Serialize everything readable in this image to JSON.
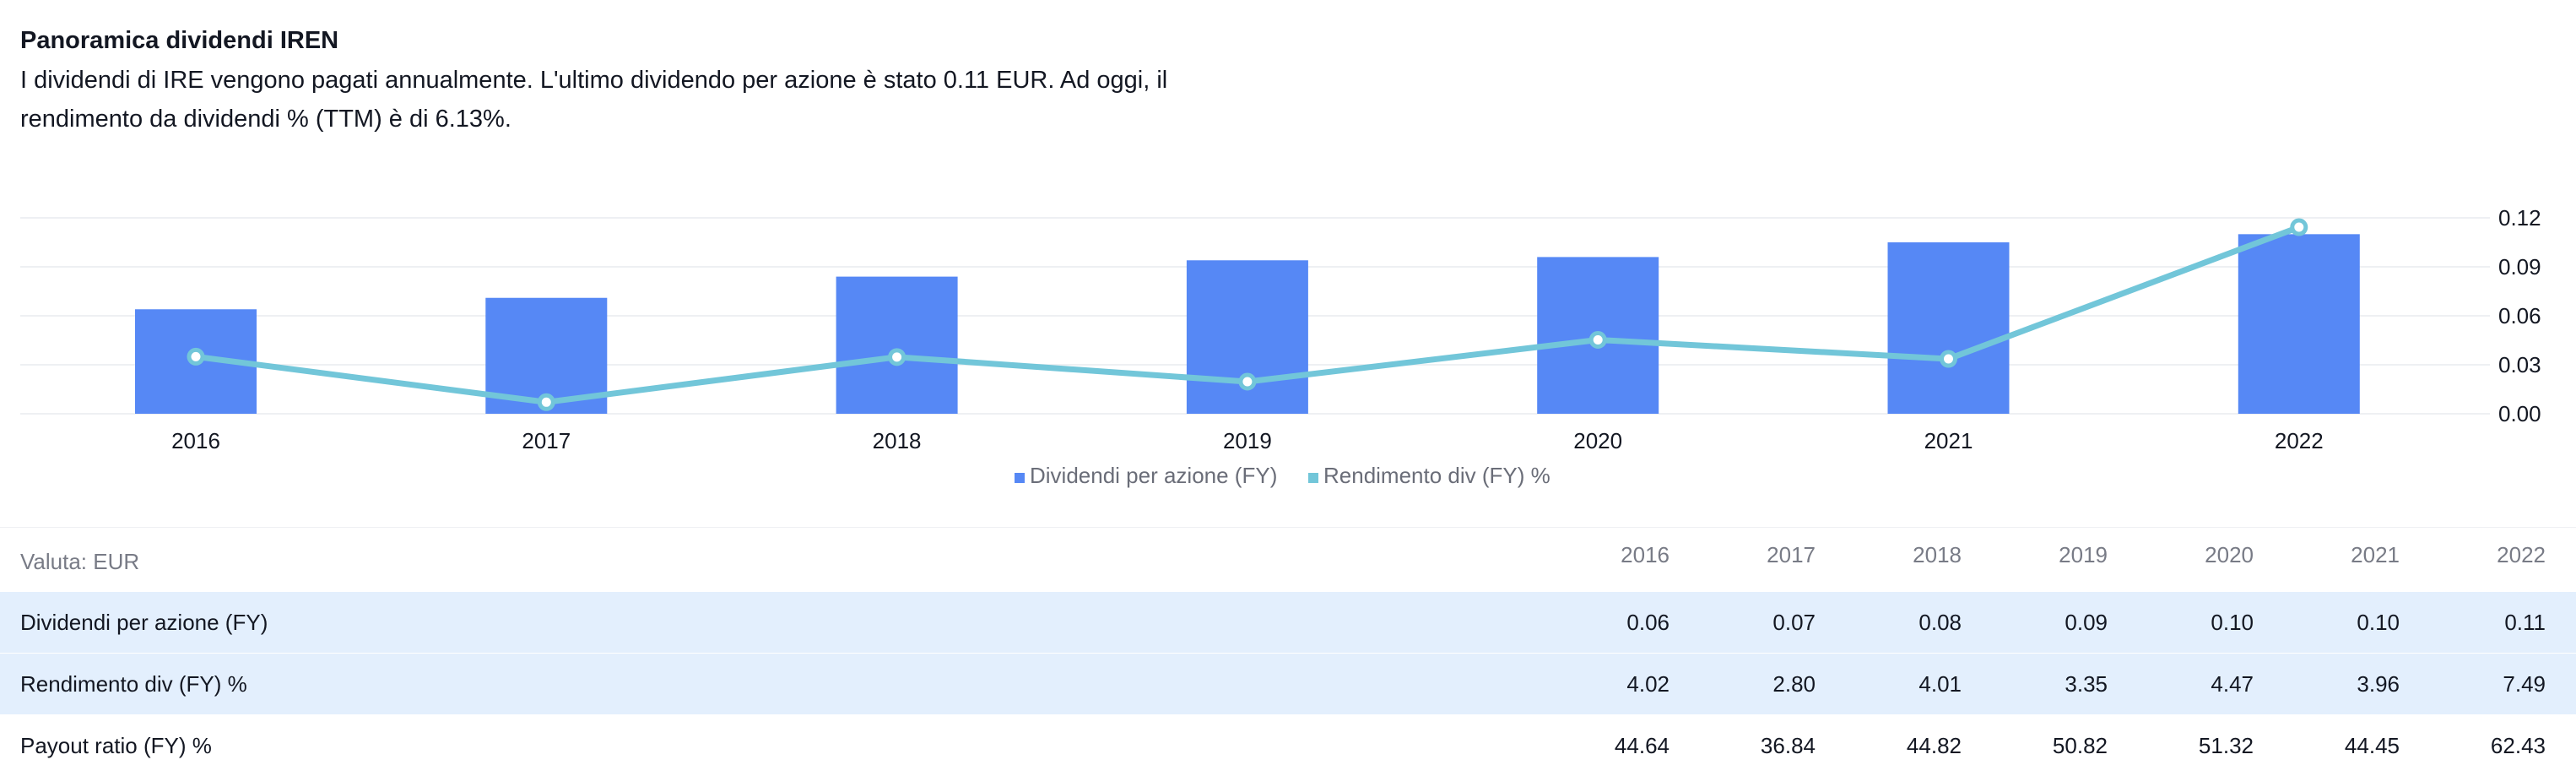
{
  "header": {
    "title": "Panoramica dividendi IREN",
    "description": "I dividendi di IRE vengono pagati annualmente. L'ultimo dividendo per azione è stato 0.11 EUR. Ad oggi, il rendimento da dividendi % (TTM) è di 6.13%."
  },
  "chart_data": {
    "type": "bar",
    "categories": [
      "2016",
      "2017",
      "2018",
      "2019",
      "2020",
      "2021",
      "2022"
    ],
    "series": [
      {
        "name": "Dividendi per azione (FY)",
        "type": "bar",
        "values": [
          0.064,
          0.071,
          0.084,
          0.094,
          0.096,
          0.105,
          0.11
        ]
      },
      {
        "name": "Rendimento div (FY) %",
        "type": "line",
        "values": [
          4.02,
          2.8,
          4.01,
          3.35,
          4.47,
          3.96,
          7.49
        ]
      }
    ],
    "y_right": {
      "ticks": [
        "0.12",
        "0.09",
        "0.06",
        "0.03",
        "0.00"
      ],
      "ylim": [
        0,
        0.12
      ]
    },
    "line_range": [
      2.49,
      7.74
    ],
    "legend_position": "bottom",
    "grid": true,
    "colors": {
      "bar": "#5688f5",
      "line": "#72c6d9",
      "grid": "#eef0f3"
    }
  },
  "table": {
    "currency_label": "Valuta: EUR",
    "years": [
      "2016",
      "2017",
      "2018",
      "2019",
      "2020",
      "2021",
      "2022"
    ],
    "rows": [
      {
        "label": "Dividendi per azione (FY)",
        "values": [
          "0.06",
          "0.07",
          "0.08",
          "0.09",
          "0.10",
          "0.10",
          "0.11"
        ],
        "highlight": true
      },
      {
        "label": "Rendimento div (FY) %",
        "values": [
          "4.02",
          "2.80",
          "4.01",
          "3.35",
          "4.47",
          "3.96",
          "7.49"
        ],
        "highlight": true
      },
      {
        "label": "Payout ratio (FY) %",
        "values": [
          "44.64",
          "36.84",
          "44.82",
          "50.82",
          "51.32",
          "44.45",
          "62.43"
        ],
        "highlight": false
      }
    ]
  }
}
